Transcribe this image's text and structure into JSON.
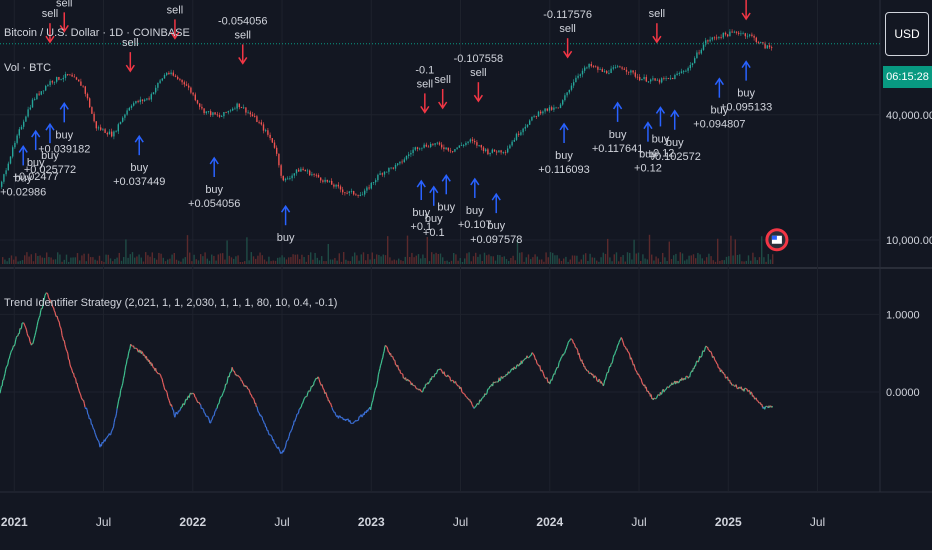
{
  "chart_header": {
    "symbol_title": "Bitcoin / U.S. Dollar · 1D · COINBASE",
    "volume_label": "Vol · BTC"
  },
  "currency_badge": "USD",
  "price_tag": "06:15:28",
  "colors": {
    "background": "#131722",
    "grid": "#1e222d",
    "up_candle": "#26a69a",
    "down_candle": "#ef5350",
    "sell_arrow": "#f23645",
    "buy_arrow": "#2962ff",
    "last_price_line": "#089981"
  },
  "chart_data": [
    {
      "type": "candlestick",
      "series": [
        {
          "name": "Bitcoin / U.S. Dollar",
          "y_scale": "log"
        }
      ],
      "y_ticks": [
        "40,000.00",
        "10,000.00"
      ],
      "x_ticks": [
        "2021",
        "Jul",
        "2022",
        "Jul",
        "2023",
        "Jul",
        "2024",
        "Jul",
        "2025",
        "Jul"
      ],
      "x_labels_bold": [
        "2021",
        "2022",
        "2023",
        "2024",
        "2025"
      ],
      "approx_close": [
        {
          "t": 2020.92,
          "v": 18000
        },
        {
          "t": 2021.0,
          "v": 29000
        },
        {
          "t": 2021.1,
          "v": 47000
        },
        {
          "t": 2021.2,
          "v": 58000
        },
        {
          "t": 2021.3,
          "v": 62000
        },
        {
          "t": 2021.38,
          "v": 55000
        },
        {
          "t": 2021.45,
          "v": 35000
        },
        {
          "t": 2021.55,
          "v": 32000
        },
        {
          "t": 2021.65,
          "v": 45000
        },
        {
          "t": 2021.75,
          "v": 48000
        },
        {
          "t": 2021.85,
          "v": 64000
        },
        {
          "t": 2021.95,
          "v": 57000
        },
        {
          "t": 2022.05,
          "v": 42000
        },
        {
          "t": 2022.15,
          "v": 39000
        },
        {
          "t": 2022.25,
          "v": 45000
        },
        {
          "t": 2022.35,
          "v": 38000
        },
        {
          "t": 2022.45,
          "v": 29000
        },
        {
          "t": 2022.5,
          "v": 19000
        },
        {
          "t": 2022.6,
          "v": 22000
        },
        {
          "t": 2022.7,
          "v": 20000
        },
        {
          "t": 2022.85,
          "v": 17000
        },
        {
          "t": 2022.95,
          "v": 16500
        },
        {
          "t": 2023.05,
          "v": 21000
        },
        {
          "t": 2023.15,
          "v": 23000
        },
        {
          "t": 2023.25,
          "v": 28000
        },
        {
          "t": 2023.35,
          "v": 29000
        },
        {
          "t": 2023.45,
          "v": 27000
        },
        {
          "t": 2023.55,
          "v": 30000
        },
        {
          "t": 2023.65,
          "v": 26500
        },
        {
          "t": 2023.75,
          "v": 27000
        },
        {
          "t": 2023.85,
          "v": 35000
        },
        {
          "t": 2023.95,
          "v": 42000
        },
        {
          "t": 2024.05,
          "v": 43000
        },
        {
          "t": 2024.15,
          "v": 62000
        },
        {
          "t": 2024.22,
          "v": 69000
        },
        {
          "t": 2024.3,
          "v": 64000
        },
        {
          "t": 2024.4,
          "v": 68000
        },
        {
          "t": 2024.5,
          "v": 60000
        },
        {
          "t": 2024.6,
          "v": 58000
        },
        {
          "t": 2024.68,
          "v": 60000
        },
        {
          "t": 2024.78,
          "v": 68000
        },
        {
          "t": 2024.87,
          "v": 90000
        },
        {
          "t": 2024.95,
          "v": 96000
        },
        {
          "t": 2025.05,
          "v": 100000
        },
        {
          "t": 2025.12,
          "v": 96000
        },
        {
          "t": 2025.2,
          "v": 85000
        },
        {
          "t": 2025.25,
          "v": 84000
        }
      ],
      "signals": [
        {
          "t": 2021.05,
          "type": "buy",
          "label": "buy",
          "value": "+0.02986"
        },
        {
          "t": 2021.12,
          "type": "buy",
          "label": "buy",
          "value": "+0.02477"
        },
        {
          "t": 2021.2,
          "type": "buy",
          "label": "buy",
          "value": "+0.025772"
        },
        {
          "t": 2021.28,
          "type": "buy",
          "label": "buy",
          "value": "+0.039182"
        },
        {
          "t": 2021.7,
          "type": "buy",
          "label": "buy",
          "value": "+0.037449"
        },
        {
          "t": 2022.12,
          "type": "buy",
          "label": "buy",
          "value": "+0.054056"
        },
        {
          "t": 2022.52,
          "type": "buy",
          "label": "buy",
          "value": ""
        },
        {
          "t": 2023.28,
          "type": "buy",
          "label": "buy",
          "value": "+0.1"
        },
        {
          "t": 2023.35,
          "type": "buy",
          "label": "buy",
          "value": "+0.1"
        },
        {
          "t": 2023.42,
          "type": "buy",
          "label": "buy",
          "value": ""
        },
        {
          "t": 2023.58,
          "type": "buy",
          "label": "buy",
          "value": "+0.107"
        },
        {
          "t": 2023.7,
          "type": "buy",
          "label": "buy",
          "value": "+0.097578"
        },
        {
          "t": 2024.08,
          "type": "buy",
          "label": "buy",
          "value": "+0.116093"
        },
        {
          "t": 2024.38,
          "type": "buy",
          "label": "buy",
          "value": "+0.117641"
        },
        {
          "t": 2024.55,
          "type": "buy",
          "label": "buy",
          "value": "+0.12"
        },
        {
          "t": 2024.62,
          "type": "buy",
          "label": "buy",
          "value": "+0.12"
        },
        {
          "t": 2024.7,
          "type": "buy",
          "label": "buy",
          "value": "+0.102572"
        },
        {
          "t": 2024.95,
          "type": "buy",
          "label": "buy",
          "value": "+0.094807"
        },
        {
          "t": 2025.1,
          "type": "buy",
          "label": "buy",
          "value": "+0.095133"
        },
        {
          "t": 2021.2,
          "type": "sell",
          "label": "sell",
          "value": ""
        },
        {
          "t": 2021.28,
          "type": "sell",
          "label": "sell",
          "value": ""
        },
        {
          "t": 2021.65,
          "type": "sell",
          "label": "sell",
          "value": ""
        },
        {
          "t": 2021.9,
          "type": "sell",
          "label": "sell",
          "value": ""
        },
        {
          "t": 2022.28,
          "type": "sell",
          "label": "sell",
          "value": "-0.054056"
        },
        {
          "t": 2023.3,
          "type": "sell",
          "label": "sell",
          "value": "-0.1"
        },
        {
          "t": 2023.4,
          "type": "sell",
          "label": "sell",
          "value": ""
        },
        {
          "t": 2023.6,
          "type": "sell",
          "label": "sell",
          "value": "-0.107558"
        },
        {
          "t": 2024.1,
          "type": "sell",
          "label": "sell",
          "value": "-0.117576"
        },
        {
          "t": 2024.6,
          "type": "sell",
          "label": "sell",
          "value": ""
        },
        {
          "t": 2025.1,
          "type": "sell",
          "label": "sell",
          "value": ""
        }
      ]
    },
    {
      "type": "line",
      "title": "Trend Identifier Strategy (2,021, 1, 1, 2,030, 1, 1, 1, 80, 10, 0.4, -0.1)",
      "y_ticks": [
        "1.0000",
        "0.0000"
      ],
      "ylim": [
        -0.9,
        1.3
      ],
      "series": [
        {
          "values": [
            {
              "t": 2020.92,
              "v": 0.0
            },
            {
              "t": 2020.98,
              "v": 0.5
            },
            {
              "t": 2021.05,
              "v": 0.9
            },
            {
              "t": 2021.1,
              "v": 0.6
            },
            {
              "t": 2021.18,
              "v": 1.3
            },
            {
              "t": 2021.25,
              "v": 0.9
            },
            {
              "t": 2021.32,
              "v": 0.3
            },
            {
              "t": 2021.4,
              "v": -0.2
            },
            {
              "t": 2021.48,
              "v": -0.7
            },
            {
              "t": 2021.55,
              "v": -0.5
            },
            {
              "t": 2021.65,
              "v": 0.6
            },
            {
              "t": 2021.72,
              "v": 0.5
            },
            {
              "t": 2021.82,
              "v": 0.2
            },
            {
              "t": 2021.9,
              "v": -0.3
            },
            {
              "t": 2022.0,
              "v": 0.0
            },
            {
              "t": 2022.1,
              "v": -0.4
            },
            {
              "t": 2022.22,
              "v": 0.3
            },
            {
              "t": 2022.32,
              "v": 0.0
            },
            {
              "t": 2022.42,
              "v": -0.5
            },
            {
              "t": 2022.5,
              "v": -0.8
            },
            {
              "t": 2022.6,
              "v": -0.2
            },
            {
              "t": 2022.7,
              "v": 0.2
            },
            {
              "t": 2022.8,
              "v": -0.3
            },
            {
              "t": 2022.9,
              "v": -0.4
            },
            {
              "t": 2023.0,
              "v": -0.2
            },
            {
              "t": 2023.08,
              "v": 0.6
            },
            {
              "t": 2023.18,
              "v": 0.2
            },
            {
              "t": 2023.28,
              "v": 0.0
            },
            {
              "t": 2023.38,
              "v": 0.3
            },
            {
              "t": 2023.48,
              "v": 0.1
            },
            {
              "t": 2023.58,
              "v": -0.2
            },
            {
              "t": 2023.68,
              "v": 0.1
            },
            {
              "t": 2023.8,
              "v": 0.3
            },
            {
              "t": 2023.9,
              "v": 0.5
            },
            {
              "t": 2024.0,
              "v": 0.1
            },
            {
              "t": 2024.12,
              "v": 0.7
            },
            {
              "t": 2024.2,
              "v": 0.3
            },
            {
              "t": 2024.3,
              "v": 0.1
            },
            {
              "t": 2024.4,
              "v": 0.7
            },
            {
              "t": 2024.5,
              "v": 0.2
            },
            {
              "t": 2024.58,
              "v": -0.1
            },
            {
              "t": 2024.68,
              "v": 0.1
            },
            {
              "t": 2024.78,
              "v": 0.2
            },
            {
              "t": 2024.88,
              "v": 0.6
            },
            {
              "t": 2024.95,
              "v": 0.3
            },
            {
              "t": 2025.02,
              "v": 0.1
            },
            {
              "t": 2025.12,
              "v": 0.0
            },
            {
              "t": 2025.2,
              "v": -0.2
            },
            {
              "t": 2025.25,
              "v": -0.2
            }
          ]
        }
      ]
    }
  ]
}
